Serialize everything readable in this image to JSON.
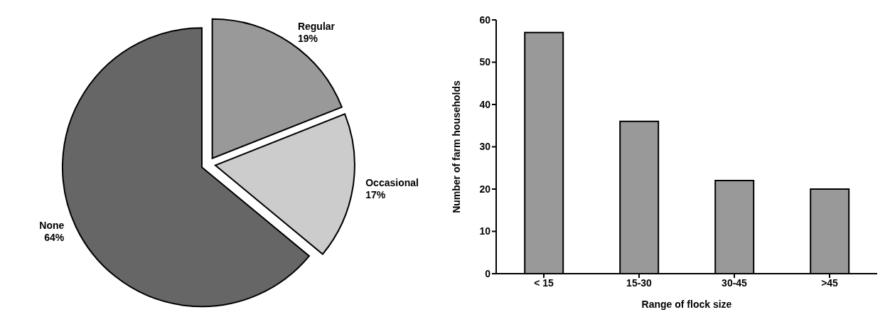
{
  "chart_data": [
    {
      "type": "pie",
      "categories": [
        "Regular",
        "Occasional",
        "None"
      ],
      "values": [
        19,
        17,
        64
      ],
      "colors": [
        "#999999",
        "#cccccc",
        "#666666"
      ],
      "value_labels": [
        "19%",
        "17%",
        "64%"
      ],
      "legend": false
    },
    {
      "type": "bar",
      "categories": [
        "< 15",
        "15-30",
        "30-45",
        ">45"
      ],
      "values": [
        57,
        36,
        22,
        20
      ],
      "color": "#999999",
      "xlabel": "Range of flock size",
      "ylabel": "Number of farm households",
      "ylim": [
        0,
        60
      ],
      "yticks": [
        0,
        10,
        20,
        30,
        40,
        50,
        60
      ],
      "grid": false,
      "legend": false
    }
  ]
}
